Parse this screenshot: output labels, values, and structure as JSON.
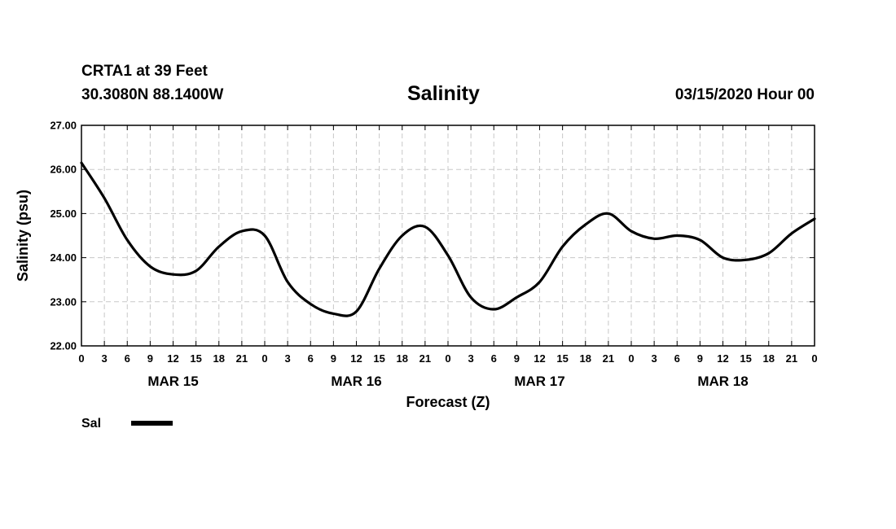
{
  "header": {
    "station": "CRTA1 at 39 Feet",
    "coords": "30.3080N 88.1400W",
    "title": "Salinity",
    "run": "03/15/2020 Hour 00"
  },
  "chart_data": {
    "type": "line",
    "title": "Salinity",
    "xlabel": "Forecast (Z)",
    "ylabel": "Salinity (psu)",
    "xlim": [
      0,
      96
    ],
    "ylim": [
      22.0,
      27.0
    ],
    "yticks": [
      "22.00",
      "23.00",
      "24.00",
      "25.00",
      "26.00",
      "27.00"
    ],
    "x_step_hours": 3,
    "xtick_labels": [
      "0",
      "3",
      "6",
      "9",
      "12",
      "15",
      "18",
      "21",
      "0",
      "3",
      "6",
      "9",
      "12",
      "15",
      "18",
      "21",
      "0",
      "3",
      "6",
      "9",
      "12",
      "15",
      "18",
      "21",
      "0",
      "3",
      "6",
      "9",
      "12",
      "15",
      "18",
      "21",
      "0"
    ],
    "day_labels": [
      {
        "label": "MAR 15",
        "hour": 12
      },
      {
        "label": "MAR 16",
        "hour": 36
      },
      {
        "label": "MAR 17",
        "hour": 60
      },
      {
        "label": "MAR 18",
        "hour": 84
      }
    ],
    "grid": true,
    "legend_position": "bottom-left",
    "series": [
      {
        "name": "Sal",
        "color": "#000000",
        "x": [
          0,
          3,
          6,
          9,
          12,
          15,
          18,
          21,
          24,
          27,
          30,
          33,
          36,
          39,
          42,
          45,
          48,
          51,
          54,
          57,
          60,
          63,
          66,
          69,
          72,
          75,
          78,
          81,
          84,
          87,
          90,
          93,
          96
        ],
        "y": [
          26.15,
          25.35,
          24.4,
          23.8,
          23.62,
          23.7,
          24.25,
          24.6,
          24.5,
          23.45,
          22.95,
          22.73,
          22.78,
          23.75,
          24.5,
          24.7,
          24.05,
          23.1,
          22.83,
          23.1,
          23.45,
          24.25,
          24.75,
          25.0,
          24.6,
          24.43,
          24.5,
          24.4,
          24.0,
          23.95,
          24.1,
          24.55,
          24.88
        ]
      }
    ]
  }
}
